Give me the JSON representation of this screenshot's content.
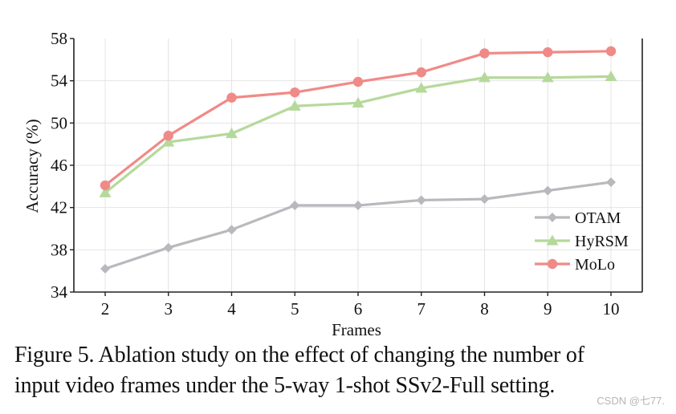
{
  "chart_data": {
    "type": "line",
    "xlabel": "Frames",
    "ylabel": "Accuracy (%)",
    "categories": [
      2,
      3,
      4,
      5,
      6,
      7,
      8,
      9,
      10
    ],
    "ylim": [
      34,
      58
    ],
    "yticks": [
      34,
      38,
      42,
      46,
      50,
      54,
      58
    ],
    "grid": true,
    "legend_position": "bottom-right",
    "series": [
      {
        "name": "OTAM",
        "color": "#bab8bd",
        "marker": "diamond",
        "values": [
          36.2,
          38.2,
          39.9,
          42.2,
          42.2,
          42.7,
          42.8,
          43.6,
          44.4
        ]
      },
      {
        "name": "HyRSM",
        "color": "#b5d99b",
        "marker": "triangle",
        "values": [
          43.4,
          48.2,
          49.0,
          51.6,
          51.9,
          53.3,
          54.3,
          54.3,
          54.4
        ]
      },
      {
        "name": "MoLo",
        "color": "#f08a87",
        "marker": "circle",
        "values": [
          44.1,
          48.8,
          52.4,
          52.9,
          53.9,
          54.8,
          56.6,
          56.7,
          56.8
        ]
      }
    ]
  },
  "caption": {
    "line1": "Figure 5.  Ablation study on the effect of changing the number of",
    "line2": "input video frames under the 5-way 1-shot SSv2-Full setting."
  },
  "watermark": "CSDN @七77."
}
